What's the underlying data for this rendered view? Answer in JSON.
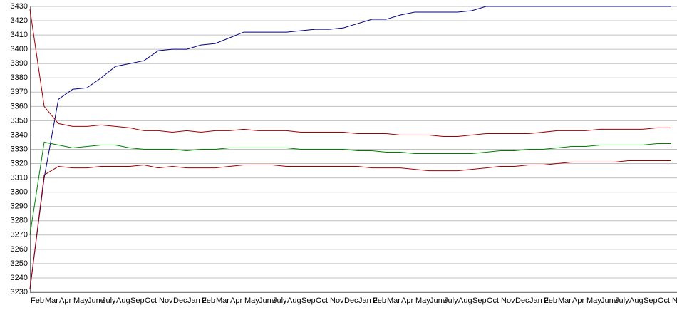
{
  "chart_data": {
    "type": "line",
    "categories": [
      "Feb",
      "Mar",
      "Apr",
      "May",
      "June",
      "July",
      "Aug",
      "Sep",
      "Oct",
      "Nov",
      "Dec",
      "Jan 2",
      "Feb",
      "Mar",
      "Apr",
      "May",
      "June",
      "July",
      "Aug",
      "Sep",
      "Oct",
      "Nov",
      "Dec",
      "Jan 2",
      "Feb",
      "Mar",
      "Apr",
      "May",
      "June",
      "July",
      "Aug",
      "Sep",
      "Oct",
      "Nov",
      "Dec",
      "Jan 2",
      "Feb",
      "Mar",
      "Apr",
      "May",
      "June",
      "July",
      "Aug",
      "Sep",
      "Oct",
      "Nov"
    ],
    "series": [
      {
        "color": "#000080",
        "values": [
          3232,
          3310,
          3365,
          3372,
          3373,
          3380,
          3388,
          3390,
          3392,
          3399,
          3400,
          3400,
          3403,
          3404,
          3408,
          3412,
          3412,
          3412,
          3412,
          3413,
          3414,
          3414,
          3415,
          3418,
          3421,
          3421,
          3424,
          3426,
          3426,
          3426,
          3426,
          3427,
          3430,
          3430,
          3430,
          3430,
          3430,
          3430,
          3430,
          3430,
          3430,
          3430,
          3430,
          3430,
          3430,
          3430
        ]
      },
      {
        "color": "#a00000",
        "values": [
          3428,
          3360,
          3348,
          3346,
          3346,
          3347,
          3346,
          3345,
          3343,
          3343,
          3342,
          3343,
          3342,
          3343,
          3343,
          3344,
          3343,
          3343,
          3343,
          3342,
          3342,
          3342,
          3342,
          3341,
          3341,
          3341,
          3340,
          3340,
          3340,
          3339,
          3339,
          3340,
          3341,
          3341,
          3341,
          3341,
          3342,
          3343,
          3343,
          3343,
          3344,
          3344,
          3344,
          3344,
          3345,
          3345
        ]
      },
      {
        "color": "#008000",
        "values": [
          3270,
          3335,
          3333,
          3331,
          3332,
          3333,
          3333,
          3331,
          3330,
          3330,
          3330,
          3329,
          3330,
          3330,
          3331,
          3331,
          3331,
          3331,
          3331,
          3330,
          3330,
          3330,
          3330,
          3329,
          3329,
          3328,
          3328,
          3327,
          3327,
          3327,
          3327,
          3327,
          3328,
          3329,
          3329,
          3330,
          3330,
          3331,
          3332,
          3332,
          3333,
          3333,
          3333,
          3333,
          3334,
          3334
        ]
      },
      {
        "color": "#a00000",
        "values": [
          3232,
          3312,
          3318,
          3317,
          3317,
          3318,
          3318,
          3318,
          3319,
          3317,
          3318,
          3317,
          3317,
          3317,
          3318,
          3319,
          3319,
          3319,
          3318,
          3318,
          3318,
          3318,
          3318,
          3318,
          3317,
          3317,
          3317,
          3316,
          3315,
          3315,
          3315,
          3316,
          3317,
          3318,
          3318,
          3319,
          3319,
          3320,
          3321,
          3321,
          3321,
          3321,
          3322,
          3322,
          3322,
          3322
        ]
      }
    ],
    "ylim": [
      3230,
      3430
    ],
    "yticks": [
      3230,
      3240,
      3250,
      3260,
      3270,
      3280,
      3290,
      3300,
      3310,
      3320,
      3330,
      3340,
      3350,
      3360,
      3370,
      3380,
      3390,
      3400,
      3410,
      3420,
      3430
    ],
    "grid": true
  }
}
